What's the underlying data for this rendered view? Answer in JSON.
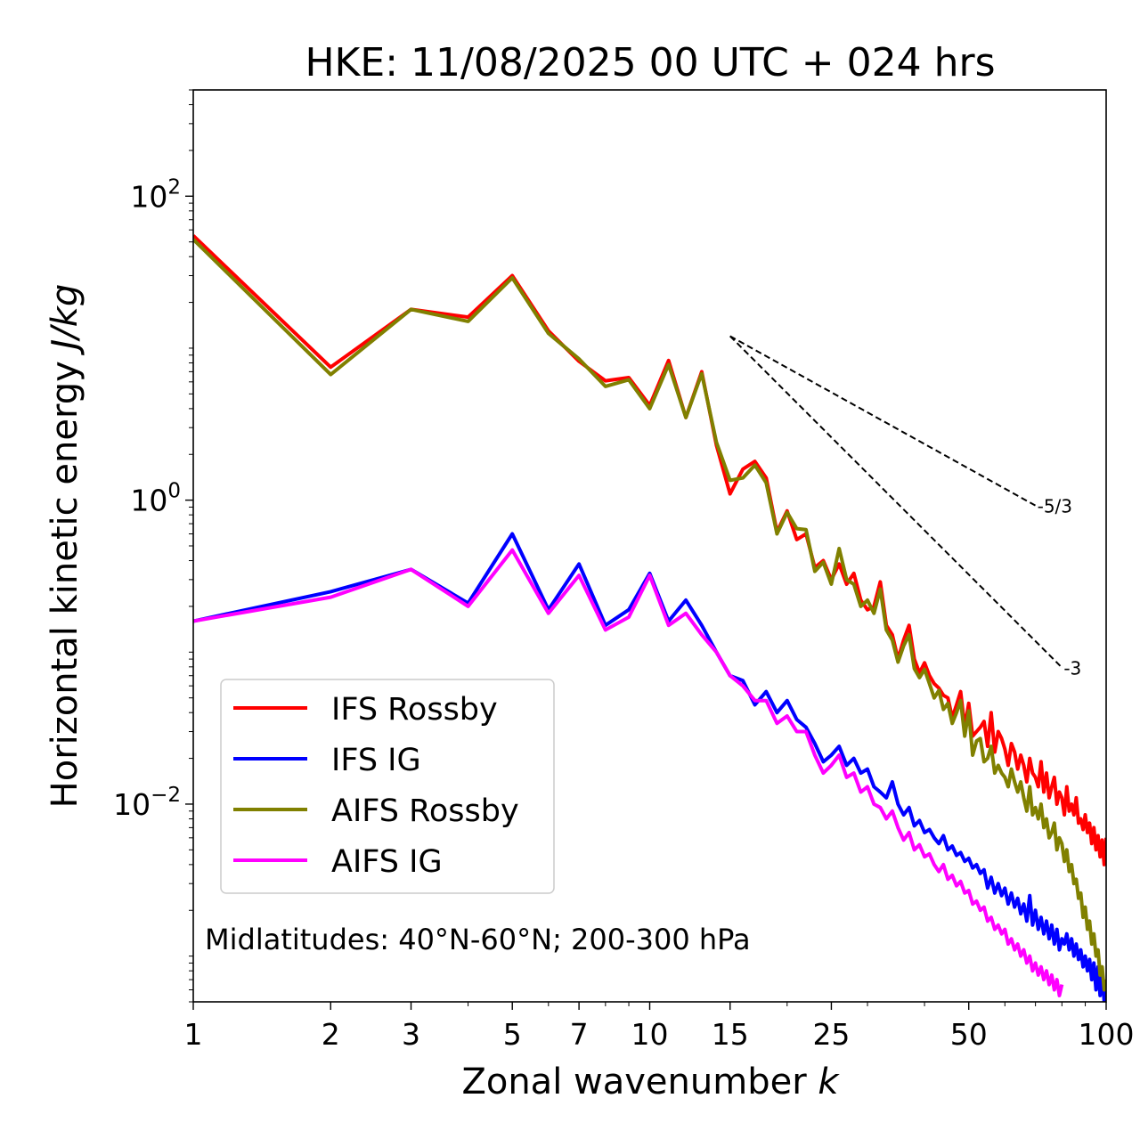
{
  "chart_data": {
    "type": "line",
    "title": "HKE: 11/08/2025 00 UTC + 024 hrs",
    "xlabel_main": "Zonal wavenumber ",
    "xlabel_var": "k",
    "ylabel_main": "Horizontal kinetic energy ",
    "ylabel_units": "J/kg",
    "xscale": "log",
    "yscale": "log",
    "xlim": [
      1,
      100
    ],
    "ylim": [
      0.0005,
      500
    ],
    "xticks": [
      {
        "v": 1,
        "label": "1"
      },
      {
        "v": 2,
        "label": "2"
      },
      {
        "v": 3,
        "label": "3"
      },
      {
        "v": 5,
        "label": "5"
      },
      {
        "v": 7,
        "label": "7"
      },
      {
        "v": 10,
        "label": "10"
      },
      {
        "v": 15,
        "label": "15"
      },
      {
        "v": 25,
        "label": "25"
      },
      {
        "v": 50,
        "label": "50"
      },
      {
        "v": 100,
        "label": "100"
      }
    ],
    "yticks": [
      {
        "v": 100,
        "base": "10",
        "exp": "2"
      },
      {
        "v": 1,
        "base": "10",
        "exp": "0"
      },
      {
        "v": 0.01,
        "base": "10",
        "exp": "−2"
      }
    ],
    "annotation": "Midlatitudes: 40°N-60°N; 200-300 hPa",
    "slopes": [
      {
        "label": "-5/3",
        "slope": -1.6667,
        "x0": 15,
        "y0": 12.0,
        "x1": 70
      },
      {
        "label": "-3",
        "slope": -3,
        "x0": 15,
        "y0": 12.0,
        "x1": 80
      }
    ],
    "series": [
      {
        "name": "IFS Rossby",
        "color": "#ff0000",
        "x": [
          1,
          2,
          3,
          4,
          5,
          6,
          7,
          8,
          9,
          10,
          11,
          12,
          13,
          14,
          15,
          16,
          17,
          18,
          19,
          20,
          21,
          22,
          23,
          24,
          25,
          26,
          27,
          28,
          29,
          30,
          31,
          32,
          33,
          34,
          35,
          36,
          37,
          38,
          39,
          40,
          41,
          42,
          43,
          44,
          45,
          46,
          47,
          48,
          49,
          50,
          51,
          52,
          53,
          54,
          55,
          56,
          57,
          58,
          59,
          60,
          61,
          62,
          63,
          64,
          65,
          66,
          67,
          68,
          69,
          70,
          71,
          72,
          73,
          74,
          75,
          76,
          77,
          78,
          79,
          80,
          81,
          82,
          83,
          84,
          85,
          86,
          87,
          88,
          89,
          90,
          91,
          92,
          93,
          94,
          95,
          96,
          97,
          98,
          99,
          100
        ],
        "y": [
          55,
          7.5,
          18,
          16,
          30,
          13,
          8.2,
          6.1,
          6.4,
          4.2,
          8.3,
          3.5,
          7.0,
          2.3,
          1.1,
          1.6,
          1.8,
          1.4,
          0.62,
          0.85,
          0.55,
          0.6,
          0.36,
          0.4,
          0.3,
          0.38,
          0.28,
          0.33,
          0.22,
          0.19,
          0.2,
          0.29,
          0.15,
          0.13,
          0.09,
          0.12,
          0.15,
          0.09,
          0.073,
          0.085,
          0.07,
          0.062,
          0.058,
          0.052,
          0.05,
          0.037,
          0.045,
          0.055,
          0.032,
          0.046,
          0.028,
          0.03,
          0.032,
          0.035,
          0.024,
          0.04,
          0.022,
          0.03,
          0.027,
          0.023,
          0.018,
          0.025,
          0.022,
          0.017,
          0.021,
          0.018,
          0.014,
          0.02,
          0.016,
          0.015,
          0.013,
          0.019,
          0.012,
          0.016,
          0.011,
          0.013,
          0.015,
          0.01,
          0.012,
          0.011,
          0.0085,
          0.013,
          0.009,
          0.01,
          0.0085,
          0.011,
          0.0075,
          0.008,
          0.0068,
          0.0085,
          0.0065,
          0.0075,
          0.0055,
          0.007,
          0.005,
          0.0062,
          0.0045,
          0.0058,
          0.004,
          0.006
        ],
        "end": 100
      },
      {
        "name": "IFS IG",
        "color": "#0000ff",
        "x": [
          1,
          2,
          3,
          4,
          5,
          6,
          7,
          8,
          9,
          10,
          11,
          12,
          13,
          14,
          15,
          16,
          17,
          18,
          19,
          20,
          21,
          22,
          23,
          24,
          25,
          26,
          27,
          28,
          29,
          30,
          31,
          32,
          33,
          34,
          35,
          36,
          37,
          38,
          39,
          40,
          41,
          42,
          43,
          44,
          45,
          46,
          47,
          48,
          49,
          50,
          51,
          52,
          53,
          54,
          55,
          56,
          57,
          58,
          59,
          60,
          61,
          62,
          63,
          64,
          65,
          66,
          67,
          68,
          69,
          70,
          71,
          72,
          73,
          74,
          75,
          76,
          77,
          78,
          79,
          80,
          81,
          82,
          83,
          84,
          85,
          86,
          87,
          88,
          89,
          90,
          91,
          92,
          93,
          94,
          95,
          96,
          97,
          98,
          99,
          100
        ],
        "y": [
          0.16,
          0.25,
          0.35,
          0.21,
          0.6,
          0.19,
          0.38,
          0.15,
          0.19,
          0.33,
          0.16,
          0.22,
          0.15,
          0.1,
          0.07,
          0.065,
          0.045,
          0.055,
          0.04,
          0.048,
          0.036,
          0.032,
          0.025,
          0.019,
          0.021,
          0.024,
          0.018,
          0.02,
          0.016,
          0.017,
          0.013,
          0.012,
          0.011,
          0.014,
          0.01,
          0.0085,
          0.0095,
          0.0072,
          0.0078,
          0.0065,
          0.0068,
          0.006,
          0.0055,
          0.0062,
          0.005,
          0.0053,
          0.0046,
          0.0048,
          0.0042,
          0.0044,
          0.0038,
          0.004,
          0.0035,
          0.0037,
          0.0028,
          0.0033,
          0.0026,
          0.003,
          0.0025,
          0.0028,
          0.0022,
          0.0026,
          0.0021,
          0.0024,
          0.0019,
          0.0022,
          0.0017,
          0.0025,
          0.0016,
          0.002,
          0.0015,
          0.0018,
          0.0014,
          0.0017,
          0.0013,
          0.0016,
          0.0012,
          0.0015,
          0.0011,
          0.0013,
          0.0012,
          0.0014,
          0.0011,
          0.0013,
          0.001,
          0.0012,
          0.00095,
          0.0011,
          0.00085,
          0.001,
          0.0008,
          0.00095,
          0.0007,
          0.0009,
          0.0006,
          0.00085,
          0.00055,
          0.0008,
          0.0005,
          0.0007
        ],
        "end": 100
      },
      {
        "name": "AIFS Rossby",
        "color": "#808000",
        "x": [
          1,
          2,
          3,
          4,
          5,
          6,
          7,
          8,
          9,
          10,
          11,
          12,
          13,
          14,
          15,
          16,
          17,
          18,
          19,
          20,
          21,
          22,
          23,
          24,
          25,
          26,
          27,
          28,
          29,
          30,
          31,
          32,
          33,
          34,
          35,
          36,
          37,
          38,
          39,
          40,
          41,
          42,
          43,
          44,
          45,
          46,
          47,
          48,
          49,
          50,
          51,
          52,
          53,
          54,
          55,
          56,
          57,
          58,
          59,
          60,
          61,
          62,
          63,
          64,
          65,
          66,
          67,
          68,
          69,
          70,
          71,
          72,
          73,
          74,
          75,
          76,
          77,
          78,
          79,
          80,
          81,
          82,
          83,
          84,
          85,
          86,
          87,
          88,
          89,
          90,
          91,
          92,
          93,
          94,
          95,
          96,
          97,
          98,
          99,
          100
        ],
        "y": [
          52,
          6.7,
          18,
          15,
          29,
          12.5,
          8.5,
          5.6,
          6.2,
          4.0,
          7.8,
          3.5,
          6.8,
          2.4,
          1.35,
          1.4,
          1.7,
          1.3,
          0.6,
          0.83,
          0.65,
          0.64,
          0.34,
          0.39,
          0.28,
          0.48,
          0.3,
          0.28,
          0.2,
          0.22,
          0.18,
          0.26,
          0.14,
          0.12,
          0.086,
          0.11,
          0.13,
          0.078,
          0.068,
          0.077,
          0.062,
          0.05,
          0.056,
          0.042,
          0.046,
          0.034,
          0.04,
          0.048,
          0.028,
          0.041,
          0.021,
          0.026,
          0.027,
          0.019,
          0.02,
          0.024,
          0.016,
          0.018,
          0.016,
          0.015,
          0.013,
          0.017,
          0.014,
          0.012,
          0.014,
          0.011,
          0.009,
          0.013,
          0.0085,
          0.0095,
          0.008,
          0.01,
          0.007,
          0.008,
          0.006,
          0.0065,
          0.0075,
          0.005,
          0.006,
          0.0055,
          0.0042,
          0.005,
          0.0036,
          0.004,
          0.003,
          0.0032,
          0.0024,
          0.0026,
          0.0018,
          0.0021,
          0.0015,
          0.0017,
          0.0012,
          0.0014,
          0.001,
          0.0011,
          0.00075,
          0.00085,
          0.0006,
          0.0007
        ],
        "end": 100
      },
      {
        "name": "AIFS IG",
        "color": "#ff00ff",
        "x": [
          1,
          2,
          3,
          4,
          5,
          6,
          7,
          8,
          9,
          10,
          11,
          12,
          13,
          14,
          15,
          16,
          17,
          18,
          19,
          20,
          21,
          22,
          23,
          24,
          25,
          26,
          27,
          28,
          29,
          30,
          31,
          32,
          33,
          34,
          35,
          36,
          37,
          38,
          39,
          40,
          41,
          42,
          43,
          44,
          45,
          46,
          47,
          48,
          49,
          50,
          51,
          52,
          53,
          54,
          55,
          56,
          57,
          58,
          59,
          60,
          61,
          62,
          63,
          64,
          65,
          66,
          67,
          68,
          69,
          70,
          71,
          72,
          73,
          74,
          75,
          76,
          77,
          78,
          79,
          80
        ],
        "y": [
          0.16,
          0.23,
          0.35,
          0.2,
          0.47,
          0.18,
          0.32,
          0.14,
          0.17,
          0.32,
          0.15,
          0.18,
          0.13,
          0.1,
          0.07,
          0.06,
          0.048,
          0.048,
          0.034,
          0.038,
          0.03,
          0.03,
          0.021,
          0.016,
          0.018,
          0.021,
          0.015,
          0.016,
          0.012,
          0.013,
          0.01,
          0.0095,
          0.008,
          0.009,
          0.007,
          0.0058,
          0.0065,
          0.005,
          0.0054,
          0.0045,
          0.0047,
          0.004,
          0.0036,
          0.004,
          0.0032,
          0.0034,
          0.0029,
          0.0031,
          0.0026,
          0.0027,
          0.0022,
          0.0023,
          0.002,
          0.0021,
          0.0017,
          0.0018,
          0.0015,
          0.0016,
          0.0014,
          0.0015,
          0.0012,
          0.0013,
          0.0011,
          0.0012,
          0.001,
          0.0011,
          0.0009,
          0.001,
          0.0008,
          0.0009,
          0.00075,
          0.00085,
          0.0007,
          0.0008,
          0.00065,
          0.00075,
          0.0006,
          0.0007,
          0.00055,
          0.00065
        ],
        "end": 80
      }
    ]
  }
}
